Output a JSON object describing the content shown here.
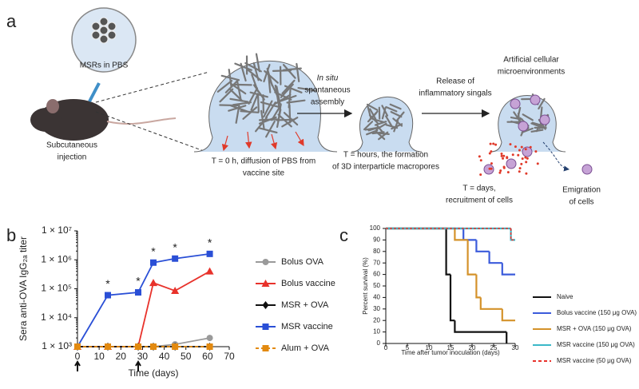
{
  "panel_a": {
    "label": "a",
    "bubble_label": "MSRs in PBS",
    "injection": [
      "Subcutaneous",
      "injection"
    ],
    "stage1": [
      "T = 0 h, diffusion of PBS from",
      "vaccine site"
    ],
    "assembly": [
      "In situ",
      "spontaneous",
      "assembly"
    ],
    "stage2": [
      "T = hours, the formation",
      "of 3D interparticle macropores"
    ],
    "release": [
      "Release of",
      "inflammatory singals"
    ],
    "microenv": [
      "Artificial cellular",
      "microenvironments"
    ],
    "stage3": [
      "T = days,",
      "recruitment of cells"
    ],
    "emigration": [
      "Emigration",
      "of cells"
    ]
  },
  "chart_data": [
    {
      "type": "line",
      "panel_label": "b",
      "log_y": true,
      "xlabel": "Time (days)",
      "ylabel": "Sera anti-OVA IgG₂ₐ titer",
      "xlim": [
        0,
        70
      ],
      "xticks": [
        0,
        10,
        20,
        30,
        40,
        50,
        60,
        70
      ],
      "ylim": [
        1000,
        10000000
      ],
      "yticks": [
        {
          "value": 1000,
          "label": "1 × 10³"
        },
        {
          "value": 10000,
          "label": "1 × 10⁴"
        },
        {
          "value": 100000,
          "label": "1 × 10⁵"
        },
        {
          "value": 1000000,
          "label": "1 × 10⁶"
        },
        {
          "value": 10000000,
          "label": "1 × 10⁷"
        }
      ],
      "arrows_x": [
        0,
        28
      ],
      "annotations": [
        {
          "text": "*",
          "x": 14
        },
        {
          "text": "*",
          "x": 28
        },
        {
          "text": "*",
          "x": 35
        },
        {
          "text": "*",
          "x": 45
        },
        {
          "text": "*",
          "x": 61
        }
      ],
      "series": [
        {
          "name": "Bolus OVA",
          "color": "#9a9a9a",
          "marker": "circle",
          "x": [
            0,
            14,
            28,
            35,
            45,
            61
          ],
          "values": [
            1000,
            1000,
            1000,
            1000,
            1200,
            2000
          ]
        },
        {
          "name": "Bolus vaccine",
          "color": "#e8322b",
          "marker": "triangle",
          "x": [
            0,
            14,
            28,
            35,
            45,
            61
          ],
          "values": [
            1000,
            1000,
            1000,
            160000,
            85000,
            400000
          ]
        },
        {
          "name": "MSR + OVA",
          "color": "#111111",
          "marker": "diamond",
          "x": [
            0,
            14,
            28,
            35,
            45,
            61
          ],
          "values": [
            1000,
            1000,
            1000,
            1000,
            1000,
            1000
          ]
        },
        {
          "name": "MSR vaccine",
          "color": "#2a4fd6",
          "marker": "square",
          "x": [
            0,
            14,
            28,
            35,
            45,
            61
          ],
          "values": [
            1000,
            60000,
            75000,
            800000,
            1100000,
            1600000
          ]
        },
        {
          "name": "Alum + OVA",
          "color": "#e38a10",
          "marker": "square",
          "dash": true,
          "x": [
            0,
            14,
            28,
            35,
            45,
            61
          ],
          "values": [
            1000,
            1000,
            1000,
            1000,
            1000,
            1000
          ]
        }
      ]
    },
    {
      "type": "step",
      "panel_label": "c",
      "xlabel": "Time after tumor inoculation (days)",
      "ylabel": "Percent survival (%)",
      "xlim": [
        0,
        30
      ],
      "xticks": [
        0,
        5,
        10,
        15,
        20,
        25,
        30
      ],
      "ylim": [
        0,
        100
      ],
      "yticks": [
        0,
        10,
        20,
        30,
        40,
        50,
        60,
        70,
        80,
        90,
        100
      ],
      "series": [
        {
          "name": "Naive",
          "color": "#111111",
          "x": [
            0,
            14,
            15,
            16,
            28
          ],
          "values": [
            100,
            60,
            20,
            10,
            0
          ]
        },
        {
          "name": "Bolus vaccine (150 μg OVA)",
          "color": "#3b5bdb",
          "x": [
            0,
            18,
            21,
            24,
            27,
            30
          ],
          "values": [
            100,
            90,
            80,
            70,
            60,
            60
          ]
        },
        {
          "name": "MSR + OVA (150 μg OVA)",
          "color": "#d4922a",
          "x": [
            0,
            16,
            19,
            21,
            22,
            27,
            30
          ],
          "values": [
            100,
            90,
            60,
            40,
            30,
            20,
            20
          ]
        },
        {
          "name": "MSR vaccine (150 μg OVA)",
          "color": "#3bb8c8",
          "x": [
            0,
            29,
            30
          ],
          "values": [
            100,
            90,
            90
          ]
        },
        {
          "name": "MSR vaccine (50 μg OVA)",
          "color": "#e8322b",
          "dash": true,
          "x": [
            0,
            29,
            30
          ],
          "values": [
            100,
            90,
            90
          ]
        }
      ]
    }
  ]
}
